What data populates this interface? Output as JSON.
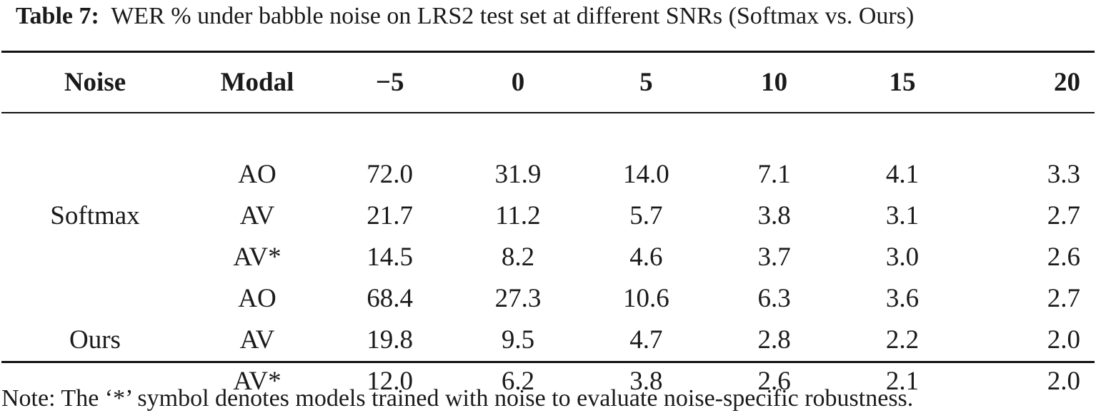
{
  "caption": {
    "label": "Table 7:",
    "text": "WER % under babble noise on LRS2 test set at different SNRs (Softmax vs. Ours)"
  },
  "table": {
    "headers": [
      "Noise",
      "Modal",
      "−5",
      "0",
      "5",
      "10",
      "15",
      "20"
    ],
    "groups": [
      {
        "name": "Softmax",
        "rows": [
          {
            "modal": "AO",
            "values": [
              "72.0",
              "31.9",
              "14.0",
              "7.1",
              "4.1",
              "3.3"
            ]
          },
          {
            "modal": "AV",
            "values": [
              "21.7",
              "11.2",
              "5.7",
              "3.8",
              "3.1",
              "2.7"
            ]
          },
          {
            "modal": "AV*",
            "values": [
              "14.5",
              "8.2",
              "4.6",
              "3.7",
              "3.0",
              "2.6"
            ]
          }
        ]
      },
      {
        "name": "Ours",
        "rows": [
          {
            "modal": "AO",
            "values": [
              "68.4",
              "27.3",
              "10.6",
              "6.3",
              "3.6",
              "2.7"
            ]
          },
          {
            "modal": "AV",
            "values": [
              "19.8",
              "9.5",
              "4.7",
              "2.8",
              "2.2",
              "2.0"
            ]
          },
          {
            "modal": "AV*",
            "values": [
              "12.0",
              "6.2",
              "3.8",
              "2.6",
              "2.1",
              "2.0"
            ]
          }
        ]
      }
    ]
  },
  "note": "Note: The ‘*’ symbol denotes models trained with noise to evaluate noise-specific robustness."
}
